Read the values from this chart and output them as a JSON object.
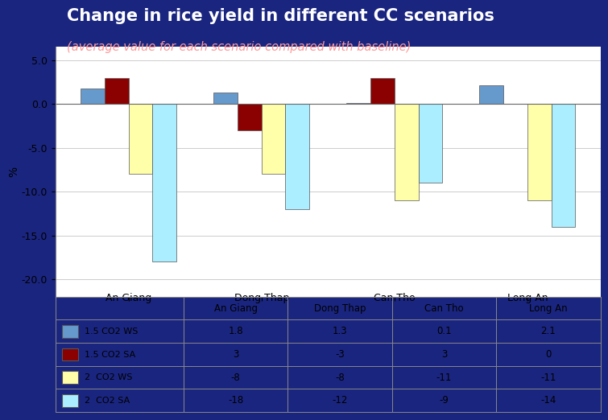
{
  "title": "Change in rice yield in different CC scenarios",
  "subtitle": "(average value for each scenario compared with baseline)",
  "categories": [
    "An Giang",
    "Dong Thap",
    "Can Tho",
    "Long An"
  ],
  "series": [
    {
      "label": "1.5 CO2 WS",
      "color": "#6699CC",
      "values": [
        1.8,
        1.3,
        0.1,
        2.1
      ]
    },
    {
      "label": "1.5 CO2 SA",
      "color": "#8B0000",
      "values": [
        3,
        -3,
        3,
        0
      ]
    },
    {
      "label": "2  CO2 WS",
      "color": "#FFFFAA",
      "values": [
        -8,
        -8,
        -11,
        -11
      ]
    },
    {
      "label": "2  CO2 SA",
      "color": "#AAEEFF",
      "values": [
        -18,
        -12,
        -9,
        -14
      ]
    }
  ],
  "ylabel": "%",
  "ylim": [
    -22,
    6.5
  ],
  "yticks": [
    5.0,
    0.0,
    -5.0,
    -10.0,
    -15.0,
    -20.0
  ],
  "background_color": "#1a2580",
  "plot_bg": "#ffffff",
  "title_color": "#ffffff",
  "subtitle_color": "#FF9999",
  "table_data": {
    "rows": [
      "1.5 CO2 WS",
      "1.5 CO2 SA",
      "2  CO2 WS",
      "2  CO2 SA"
    ],
    "cols": [
      "An Giang",
      "Dong Thap",
      "Can Tho",
      "Long An"
    ],
    "values": [
      [
        "1.8",
        "1.3",
        "0.1",
        "2.1"
      ],
      [
        "3",
        "-3",
        "3",
        "0"
      ],
      [
        "-8",
        "-8",
        "-11",
        "-11"
      ],
      [
        "-18",
        "-12",
        "-9",
        "-14"
      ]
    ],
    "row_colors": [
      "#6699CC",
      "#8B0000",
      "#FFFFAA",
      "#AAEEFF"
    ]
  }
}
